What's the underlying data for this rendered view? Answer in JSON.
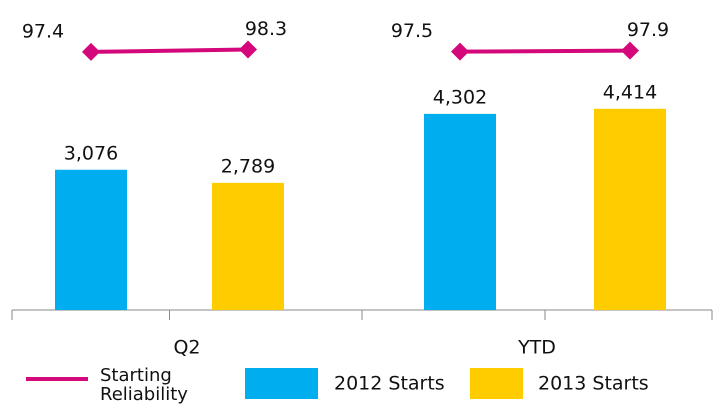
{
  "chart_data": [
    {
      "type": "bar",
      "xlabel": "Q2",
      "categories": [
        null,
        null
      ],
      "ylim": [
        0,
        6800
      ],
      "y2lim": [
        0,
        117
      ],
      "series": [
        {
          "name": "2012 Starts",
          "color": "#00aeef",
          "values": [
            3076,
            null
          ],
          "value_labels": [
            "3,076",
            null
          ]
        },
        {
          "name": "2013 Starts",
          "color": "#ffcc00",
          "values": [
            null,
            2789
          ],
          "value_labels": [
            null,
            "2,789"
          ]
        },
        {
          "name": "Starting Reliability",
          "type": "line",
          "axis": "y2",
          "color": "#d4087a",
          "values": [
            97.4,
            98.3
          ]
        }
      ]
    },
    {
      "type": "bar",
      "xlabel": "YTD",
      "categories": [
        null,
        null
      ],
      "ylim": [
        0,
        6800
      ],
      "y2lim": [
        0,
        117
      ],
      "series": [
        {
          "name": "2012 Starts",
          "color": "#00aeef",
          "values": [
            4302,
            null
          ],
          "value_labels": [
            "4,302",
            null
          ]
        },
        {
          "name": "2013 Starts",
          "color": "#ffcc00",
          "values": [
            null,
            4414
          ],
          "value_labels": [
            null,
            "4,414"
          ]
        },
        {
          "name": "Starting Reliability",
          "type": "line",
          "axis": "y2",
          "color": "#d4087a",
          "values": [
            97.5,
            97.9
          ]
        }
      ]
    }
  ]
}
